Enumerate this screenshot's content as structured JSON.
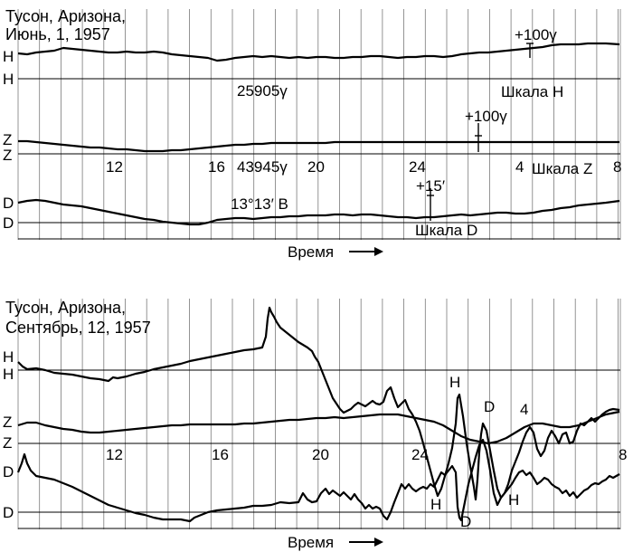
{
  "panel1": {
    "title_line1": "Тусон, Аризона,",
    "title_line2": "Июнь, 1, 1957",
    "axis_labels": [
      "H",
      "H",
      "Z",
      "Z",
      "D",
      "D"
    ],
    "h_value": "25905γ",
    "z_value": "43945γ",
    "d_value": "13°13′ В",
    "scale_h_label": "Шкала H",
    "scale_h_mark": "+100γ",
    "scale_z_label": "Шкала Z",
    "scale_z_mark": "+100γ",
    "scale_d_label": "Шкала D",
    "scale_d_mark": "+15′",
    "ticks": [
      "12",
      "16",
      "20",
      "24",
      "4",
      "8"
    ],
    "time_label": "Время"
  },
  "panel2": {
    "title_line1": "Тусон, Аризона,",
    "title_line2": "Сентябрь, 12, 1957",
    "axis_labels": [
      "H",
      "H",
      "Z",
      "Z",
      "D",
      "D"
    ],
    "ticks": [
      "12",
      "16",
      "20",
      "24",
      "8"
    ],
    "trace_labels": [
      "H",
      "H",
      "H",
      "D",
      "D",
      "4"
    ],
    "time_label": "Время"
  }
}
